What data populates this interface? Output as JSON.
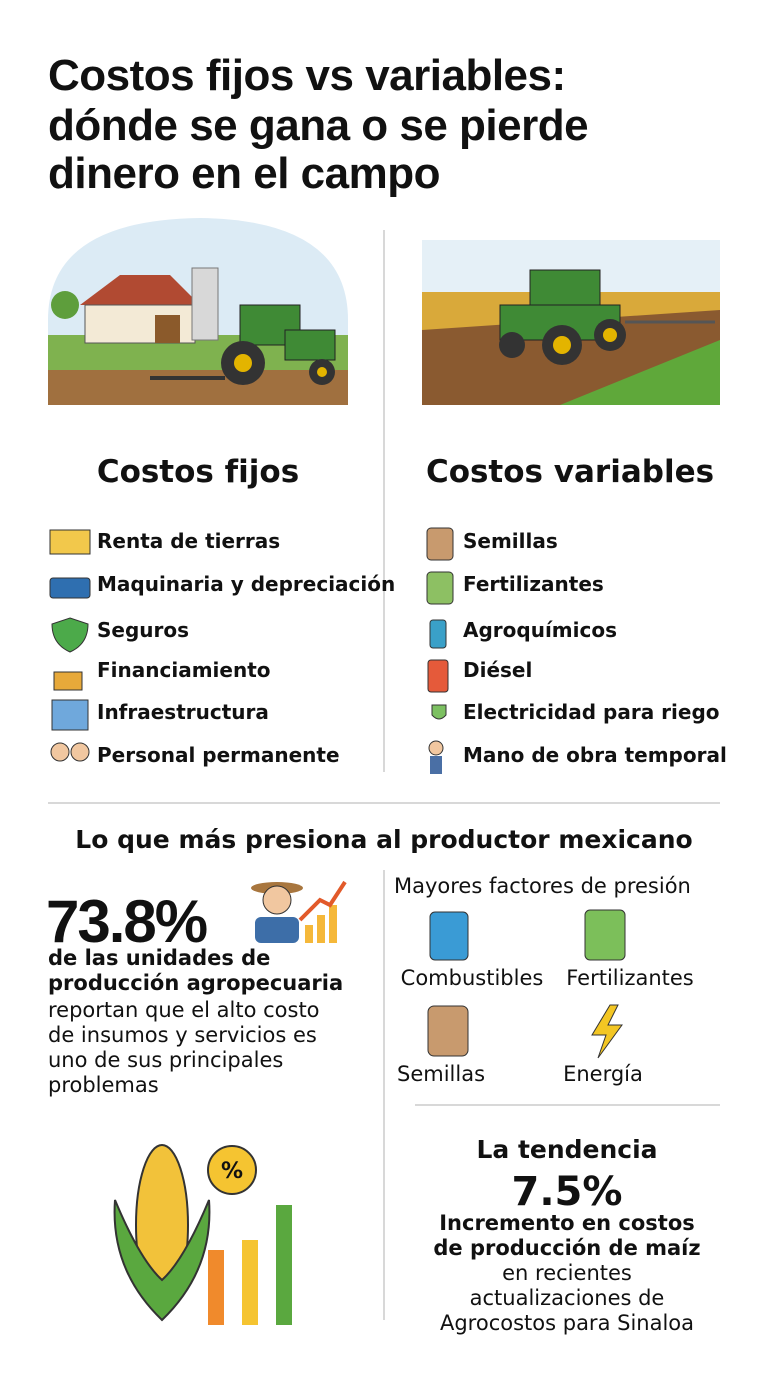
{
  "header": {
    "title_lines": [
      "Costos fijos vs variables:",
      "dónde se gana o se pierde",
      "dinero en el campo"
    ]
  },
  "fixed": {
    "heading": "Costos fijos",
    "items": [
      "Renta de tierras",
      "Maquinaria y depreciación",
      "Seguros",
      "Financiamiento",
      "Infraestructura",
      "Personal permanente"
    ]
  },
  "variable": {
    "heading": "Costos variables",
    "items": [
      "Semillas",
      "Fertilizantes",
      "Agroquímicos",
      "Diésel",
      "Electricidad para riego",
      "Mano de obra temporal"
    ]
  },
  "pressure": {
    "heading": "Lo que más presiona al productor mexicano",
    "stat": "73.8%",
    "stat_lead": [
      "de las unidades de",
      "producción agropecuaria"
    ],
    "stat_text": [
      "reportan que el alto costo",
      "de insumos y servicios es",
      "uno de sus principales",
      "problemas"
    ],
    "factors_title": "Mayores factores de presión",
    "factors": [
      "Combustibles",
      "Fertilizantes",
      "Semillas",
      "Energía"
    ]
  },
  "trend": {
    "heading": "La tendencia",
    "stat": "7.5%",
    "lead": [
      "Incremento en costos",
      "de producción de maíz"
    ],
    "text": [
      "en recientes",
      "actualizaciones de",
      "Agrocostos para Sinaloa"
    ]
  }
}
